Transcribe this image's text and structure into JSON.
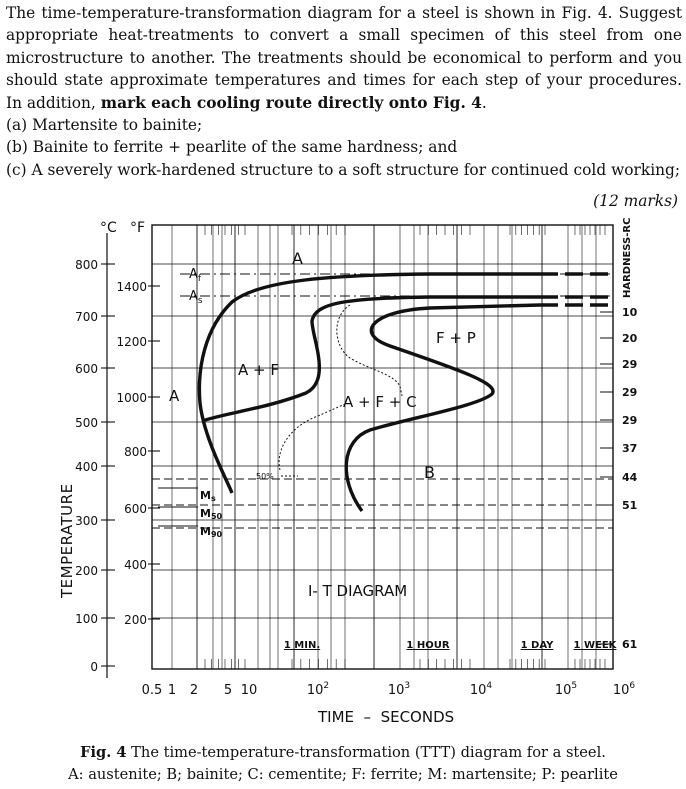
{
  "question": {
    "intro": "The time-temperature-transformation diagram for a steel is shown in Fig. 4. Suggest appropriate heat-treatments to convert a small specimen of this steel from one microstructure to another. The treatments should be economical to perform and you should state approximate temperatures and times for each step of your procedures. In addition,",
    "intro_bold": "mark each cooling route directly onto Fig. 4",
    "intro_end": ".",
    "parts": [
      "(a) Martensite to bainite;",
      "(b) Bainite to ferrite + pearlite of the same hardness; and",
      "(c) A severely work-hardened structure to a soft structure for continued cold working;"
    ],
    "marks": "(12 marks)"
  },
  "figure": {
    "unit_c": "°C",
    "unit_f": "°F",
    "celsius_ticks": [
      "800",
      "700",
      "600",
      "500",
      "400",
      "300",
      "200",
      "100",
      "0"
    ],
    "fahrenheit_ticks": [
      "1400",
      "1200",
      "1000",
      "800",
      "600",
      "400",
      "200"
    ],
    "y_axis_label": "TEMPERATURE",
    "hardness_label": "HARDNESS-RC",
    "hardness_ticks": [
      "10",
      "20",
      "29",
      "29",
      "29",
      "37",
      "44",
      "51",
      "61"
    ],
    "x_ticks": [
      "0.5",
      "1",
      "2",
      "5",
      "10"
    ],
    "x_pow_ticks": [
      "2",
      "3",
      "4",
      "5",
      "6"
    ],
    "x_pow_base": "10",
    "x_axis_label": "TIME  –  SECONDS",
    "time_marks": [
      "1 MIN.",
      "1 HOUR",
      "1 DAY",
      "1 WEEK"
    ],
    "diagram_title": "I- T  DIAGRAM",
    "labels": {
      "A_top": "A",
      "A_left": "A",
      "Af_main": "A",
      "Af_sub": "f",
      "As_main": "A",
      "As_sub": "s",
      "AF": "A + F",
      "AFC": "A + F + C",
      "FP": "F + P",
      "B": "B",
      "pct50": "50%",
      "Ms_main": "M",
      "Ms_sub": "s",
      "M50_main": "M",
      "M50_sub": "50",
      "M90_main": "M",
      "M90_sub": "90"
    }
  },
  "caption": {
    "bold": "Fig. 4",
    "line1": " The time-temperature-transformation (TTT) diagram for a steel.",
    "line2": "A: austenite; B; bainite; C: cementite; F: ferrite; M: martensite; P: pearlite"
  }
}
